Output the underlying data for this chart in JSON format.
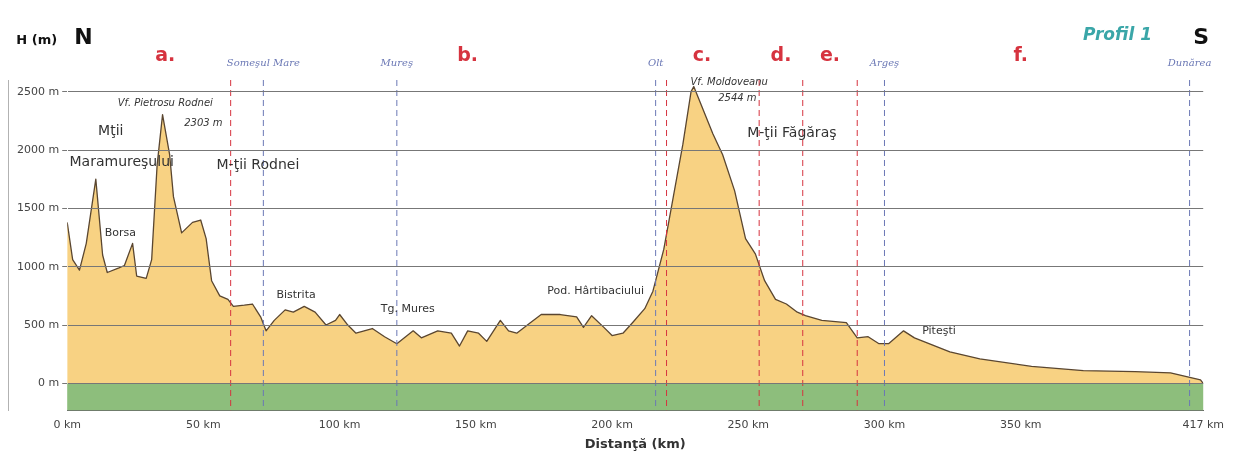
{
  "chart_data": {
    "type": "area",
    "title": "Profil 1",
    "xlabel": "Distanţă (km)",
    "ylabel": "H (m)",
    "x": [
      0,
      2,
      4.5,
      7,
      10.5,
      13,
      14.7,
      19,
      21,
      24,
      25.5,
      29,
      31,
      33,
      35,
      37.6,
      39,
      42,
      46,
      49,
      51,
      53,
      56,
      59,
      61,
      65,
      68,
      71,
      73,
      76,
      80,
      83,
      87,
      91,
      95,
      98.5,
      100,
      103,
      106,
      112,
      116.5,
      121,
      127,
      130,
      136,
      141,
      144,
      147,
      151,
      154,
      159,
      162,
      165,
      170,
      174,
      181,
      187,
      189.5,
      192.5,
      197,
      200,
      204,
      207.5,
      212,
      215,
      219,
      222.5,
      226,
      229,
      230,
      233,
      237,
      240.6,
      245,
      249,
      252.6,
      256,
      260,
      264,
      268,
      271,
      277,
      286,
      290,
      294,
      298,
      301.5,
      307,
      311,
      324,
      335,
      354,
      373,
      392,
      405,
      416,
      417
    ],
    "series": [
      {
        "color": "#f8d283",
        "values": [
          1380,
          1060,
          970,
          1200,
          1750,
          1100,
          950,
          990,
          1010,
          1200,
          920,
          900,
          1060,
          1870,
          2303,
          1960,
          1600,
          1290,
          1380,
          1400,
          1240,
          880,
          750,
          720,
          660,
          670,
          680,
          570,
          450,
          540,
          630,
          610,
          660,
          610,
          500,
          540,
          590,
          500,
          430,
          470,
          400,
          340,
          450,
          390,
          450,
          430,
          320,
          450,
          430,
          360,
          540,
          450,
          430,
          520,
          590,
          590,
          570,
          480,
          580,
          480,
          410,
          430,
          520,
          640,
          790,
          1150,
          1600,
          2050,
          2500,
          2544,
          2370,
          2140,
          1960,
          1650,
          1240,
          1110,
          880,
          720,
          680,
          610,
          580,
          540,
          520,
          390,
          400,
          340,
          340,
          450,
          390,
          270,
          210,
          145,
          110,
          100,
          90,
          30,
          0
        ]
      }
    ],
    "xlim": [
      0,
      417
    ],
    "ylim": [
      -230,
      2600
    ],
    "xticks": [
      {
        "value": 0,
        "label": "0 km"
      },
      {
        "value": 50,
        "label": "50 km"
      },
      {
        "value": 100,
        "label": "100 km"
      },
      {
        "value": 150,
        "label": "150 km"
      },
      {
        "value": 200,
        "label": "200 km"
      },
      {
        "value": 250,
        "label": "250 km"
      },
      {
        "value": 300,
        "label": "300 km"
      },
      {
        "value": 350,
        "label": "350 km"
      },
      {
        "value": 417,
        "label": "417 km"
      }
    ],
    "yticks": [
      {
        "value": 0,
        "label": "0 m"
      },
      {
        "value": 500,
        "label": "500 m"
      },
      {
        "value": 1000,
        "label": "1000 m"
      },
      {
        "value": 1500,
        "label": "1500 m"
      },
      {
        "value": 2000,
        "label": "2000 m"
      },
      {
        "value": 2500,
        "label": "2500 m"
      }
    ],
    "grid": "y",
    "marker": "none",
    "line_style": "solid",
    "legend": false,
    "bands": [
      {
        "axis": "y",
        "from": -230,
        "to": 0,
        "color": "#8dbe7c"
      }
    ],
    "ref_lines": [
      {
        "axis": "x",
        "value": 60,
        "color": "#d6333f",
        "line_style": "dashed"
      },
      {
        "axis": "x",
        "value": 220,
        "color": "#d6333f",
        "line_style": "dashed"
      },
      {
        "axis": "x",
        "value": 254,
        "color": "#d6333f",
        "line_style": "dashed"
      },
      {
        "axis": "x",
        "value": 270,
        "color": "#d6333f",
        "line_style": "dashed"
      },
      {
        "axis": "x",
        "value": 290,
        "color": "#d6333f",
        "line_style": "dashed"
      },
      {
        "axis": "x",
        "value": 72,
        "label": "Someşul Mare",
        "color": "#6b78b5",
        "line_style": "dashed"
      },
      {
        "axis": "x",
        "value": 121,
        "label": "Mureş",
        "color": "#6b78b5",
        "line_style": "dashed"
      },
      {
        "axis": "x",
        "value": 216,
        "label": "Olt",
        "color": "#6b78b5",
        "line_style": "dashed"
      },
      {
        "axis": "x",
        "value": 300,
        "label": "Argeş",
        "color": "#6b78b5",
        "line_style": "dashed"
      },
      {
        "axis": "x",
        "value": 412,
        "label": "Dunărea",
        "color": "#6b78b5",
        "line_style": "dashed"
      }
    ],
    "annotations": [
      "N",
      "a.",
      "b.",
      "c.",
      "d.",
      "e.",
      "f.",
      "S",
      "Vf. Pietrosu Rodnei",
      "2303 m",
      "Mţii",
      "Maramureşului",
      "M-ţii Rodnei",
      "Borsa",
      "Bistrita",
      "Tg. Mures",
      "Pod. Hârtibaciului",
      "Vf. Moldoveanu",
      "2544 m",
      "M-ţii Făgăraş",
      "Piteşti"
    ]
  }
}
